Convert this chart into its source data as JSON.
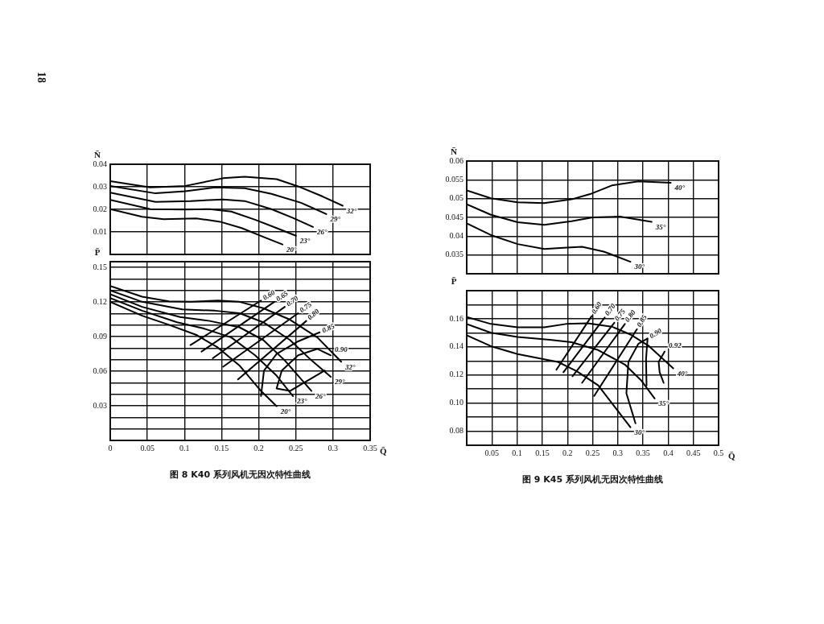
{
  "chart_data": [
    {
      "type": "line",
      "ylabel": "N̄",
      "xlim": [
        0,
        0.35
      ],
      "xticks": [
        0.05,
        0.1,
        0.15,
        0.2,
        0.25,
        0.3
      ],
      "ylim": [
        0,
        0.04
      ],
      "yticks": [
        0.01,
        0.02,
        0.03,
        0.04
      ],
      "grid": true,
      "tick_labels": "y",
      "marker": "none",
      "annotations": [
        "18"
      ],
      "series": [
        {
          "name": "32°",
          "color": "#000000",
          "x": [
            0,
            0.054,
            0.101,
            0.152,
            0.181,
            0.224,
            0.253,
            0.286,
            0.313
          ],
          "values": [
            0.0325,
            0.0297,
            0.0304,
            0.0338,
            0.0345,
            0.0334,
            0.0302,
            0.0257,
            0.0216
          ]
        },
        {
          "name": "29°",
          "color": "#000000",
          "x": [
            0,
            0.061,
            0.101,
            0.141,
            0.181,
            0.217,
            0.257,
            0.291
          ],
          "values": [
            0.0304,
            0.0271,
            0.028,
            0.0297,
            0.0294,
            0.0269,
            0.0229,
            0.0179
          ]
        },
        {
          "name": "26°",
          "color": "#000000",
          "x": [
            0,
            0.061,
            0.108,
            0.152,
            0.181,
            0.217,
            0.246,
            0.273
          ],
          "values": [
            0.0274,
            0.0233,
            0.0237,
            0.0244,
            0.0237,
            0.0201,
            0.0162,
            0.0122
          ]
        },
        {
          "name": "23°",
          "color": "#000000",
          "x": [
            0,
            0.054,
            0.101,
            0.134,
            0.163,
            0.195,
            0.224,
            0.25
          ],
          "values": [
            0.0242,
            0.0201,
            0.0199,
            0.0201,
            0.019,
            0.0154,
            0.0117,
            0.0083
          ]
        },
        {
          "name": "20°",
          "color": "#000000",
          "x": [
            0,
            0.043,
            0.072,
            0.116,
            0.148,
            0.177,
            0.206,
            0.232
          ],
          "values": [
            0.0201,
            0.0167,
            0.0156,
            0.016,
            0.0145,
            0.0117,
            0.0078,
            0.0044
          ]
        }
      ]
    },
    {
      "type": "line",
      "title": "图 8 K40 系列风机无因次特性曲线",
      "xlabel": "Q̄",
      "ylabel": "P̄",
      "xlim": [
        0,
        0.35
      ],
      "xticks": [
        0,
        0.05,
        0.1,
        0.15,
        0.2,
        0.25,
        0.3,
        0.35
      ],
      "ylim": [
        0,
        0.155
      ],
      "yticks": [
        {
          "value": 0.01,
          "label": null
        },
        {
          "value": 0.02,
          "label": null
        },
        0.03,
        {
          "value": 0.04,
          "label": null
        },
        {
          "value": 0.05,
          "label": null
        },
        0.06,
        {
          "value": 0.07,
          "label": null
        },
        {
          "value": 0.08,
          "label": null
        },
        0.09,
        {
          "value": 0.1,
          "label": null
        },
        {
          "value": 0.11,
          "label": null
        },
        0.12,
        {
          "value": 0.13,
          "label": null
        },
        {
          "value": 0.14,
          "label": null
        },
        0.15
      ],
      "grid": true,
      "marker": "none",
      "series": [
        {
          "name": "32°",
          "color": "#000000",
          "x": [
            0,
            0.043,
            0.079,
            0.108,
            0.145,
            0.174,
            0.206,
            0.242,
            0.279,
            0.311
          ],
          "values": [
            0.1339,
            0.1246,
            0.1206,
            0.1202,
            0.1213,
            0.1202,
            0.1147,
            0.1047,
            0.0893,
            0.0683
          ]
        },
        {
          "name": "29°",
          "color": "#000000",
          "x": [
            0,
            0.043,
            0.097,
            0.141,
            0.174,
            0.206,
            0.242,
            0.271,
            0.297
          ],
          "values": [
            0.1301,
            0.1202,
            0.1136,
            0.1125,
            0.1103,
            0.1025,
            0.0871,
            0.0694,
            0.0551
          ]
        },
        {
          "name": "26°",
          "color": "#000000",
          "x": [
            0,
            0.043,
            0.094,
            0.134,
            0.174,
            0.206,
            0.235,
            0.271
          ],
          "values": [
            0.1268,
            0.1158,
            0.107,
            0.1036,
            0.0981,
            0.0871,
            0.0694,
            0.0429
          ]
        },
        {
          "name": "23°",
          "color": "#000000",
          "x": [
            0,
            0.043,
            0.09,
            0.126,
            0.163,
            0.195,
            0.224,
            0.246
          ],
          "values": [
            0.1235,
            0.1125,
            0.1025,
            0.097,
            0.0893,
            0.0738,
            0.0562,
            0.0385
          ]
        },
        {
          "name": "20°",
          "color": "#000000",
          "x": [
            0,
            0.043,
            0.079,
            0.116,
            0.145,
            0.174,
            0.203,
            0.224
          ],
          "values": [
            0.1202,
            0.1081,
            0.1003,
            0.0915,
            0.0805,
            0.065,
            0.0429,
            0.0297
          ]
        },
        {
          "name": "0.60",
          "color": "#000000",
          "x": [
            0.108,
            0.203
          ],
          "values": [
            0.0827,
            0.1213
          ]
        },
        {
          "name": "0.65",
          "color": "#000000",
          "x": [
            0.123,
            0.221
          ],
          "values": [
            0.0771,
            0.1202
          ]
        },
        {
          "name": "0.70",
          "color": "#000000",
          "x": [
            0.138,
            0.235
          ],
          "values": [
            0.0712,
            0.1158
          ]
        },
        {
          "name": "0.75",
          "color": "#000000",
          "x": [
            0.152,
            0.253
          ],
          "values": [
            0.0639,
            0.1103
          ]
        },
        {
          "name": "0.80",
          "color": "#000000",
          "x": [
            0.172,
            0.264
          ],
          "values": [
            0.0529,
            0.1036
          ]
        },
        {
          "name": "0.85",
          "color": "#000000",
          "x": [
            0.203,
            0.207,
            0.224,
            0.253,
            0.282
          ],
          "values": [
            0.0385,
            0.0605,
            0.0749,
            0.0859,
            0.0937
          ]
        },
        {
          "name": "0.90",
          "color": "#000000",
          "x": [
            0.297,
            0.279,
            0.253,
            0.231,
            0.224,
            0.242,
            0.289
          ],
          "values": [
            0.0738,
            0.0794,
            0.0738,
            0.0606,
            0.0451,
            0.0429,
            0.0606
          ]
        }
      ]
    },
    {
      "type": "line",
      "ylabel": "N̄",
      "xlim": [
        0,
        0.5
      ],
      "xticks": [
        0.05,
        0.1,
        0.15,
        0.2,
        0.25,
        0.3,
        0.35,
        0.4,
        0.45
      ],
      "ylim": [
        0.03,
        0.06
      ],
      "yticks": [
        0.035,
        0.04,
        0.045,
        0.05,
        0.055,
        0.06
      ],
      "grid": true,
      "tick_labels": "y",
      "marker": "none",
      "series": [
        {
          "name": "40°",
          "color": "#000000",
          "x": [
            0,
            0.048,
            0.101,
            0.154,
            0.208,
            0.245,
            0.288,
            0.341,
            0.405
          ],
          "values": [
            0.0522,
            0.0501,
            0.049,
            0.0488,
            0.0498,
            0.0512,
            0.0535,
            0.0546,
            0.0542
          ]
        },
        {
          "name": "35°",
          "color": "#000000",
          "x": [
            0,
            0.048,
            0.101,
            0.154,
            0.208,
            0.25,
            0.304,
            0.367
          ],
          "values": [
            0.0485,
            0.0457,
            0.0437,
            0.043,
            0.044,
            0.045,
            0.0452,
            0.0438
          ]
        },
        {
          "name": "30°",
          "color": "#000000",
          "x": [
            0,
            0.048,
            0.101,
            0.154,
            0.192,
            0.229,
            0.272,
            0.325
          ],
          "values": [
            0.0434,
            0.0403,
            0.0379,
            0.0366,
            0.0369,
            0.0372,
            0.0359,
            0.0332
          ]
        }
      ]
    },
    {
      "type": "line",
      "title": "图 9 K45 系列风机无因次特性曲线",
      "xlabel": "Q̄",
      "ylabel": "P̄",
      "xlim": [
        0,
        0.5
      ],
      "xticks": [
        0.05,
        0.1,
        0.15,
        0.2,
        0.25,
        0.3,
        0.35,
        0.4,
        0.45,
        0.5
      ],
      "ylim": [
        0.07,
        0.18
      ],
      "yticks": [
        0.08,
        {
          "value": 0.09,
          "label": null
        },
        {
          "value": 0.1,
          "label": "0.10"
        },
        {
          "value": 0.11,
          "label": null
        },
        0.12,
        {
          "value": 0.13,
          "label": null
        },
        0.14,
        {
          "value": 0.15,
          "label": null
        },
        0.16,
        {
          "value": 0.17,
          "label": null
        }
      ],
      "grid": true,
      "marker": "none",
      "series": [
        {
          "name": "40°",
          "color": "#000000",
          "x": [
            0,
            0.048,
            0.101,
            0.154,
            0.197,
            0.24,
            0.288,
            0.325,
            0.362,
            0.41
          ],
          "values": [
            0.1613,
            0.1563,
            0.1539,
            0.1539,
            0.1563,
            0.1568,
            0.1544,
            0.1488,
            0.1405,
            0.1247
          ]
        },
        {
          "name": "35°",
          "color": "#000000",
          "x": [
            0,
            0.048,
            0.101,
            0.165,
            0.208,
            0.261,
            0.314,
            0.346,
            0.373
          ],
          "values": [
            0.1563,
            0.1501,
            0.147,
            0.1451,
            0.1433,
            0.1377,
            0.1274,
            0.1163,
            0.1033
          ]
        },
        {
          "name": "30°",
          "color": "#000000",
          "x": [
            0,
            0.048,
            0.101,
            0.154,
            0.181,
            0.218,
            0.261,
            0.293,
            0.325
          ],
          "values": [
            0.1483,
            0.1405,
            0.1349,
            0.1312,
            0.1293,
            0.1228,
            0.1126,
            0.0977,
            0.0828
          ]
        },
        {
          "name": "0.60",
          "color": "#000000",
          "x": [
            0.178,
            0.248
          ],
          "values": [
            0.1237,
            0.1619
          ]
        },
        {
          "name": "0.70",
          "color": "#000000",
          "x": [
            0.192,
            0.274
          ],
          "values": [
            0.1219,
            0.1609
          ]
        },
        {
          "name": "0.75",
          "color": "#000000",
          "x": [
            0.21,
            0.293
          ],
          "values": [
            0.1191,
            0.1572
          ]
        },
        {
          "name": "0.80",
          "color": "#000000",
          "x": [
            0.229,
            0.314
          ],
          "values": [
            0.1144,
            0.1563
          ]
        },
        {
          "name": "0.85",
          "color": "#000000",
          "x": [
            0.253,
            0.338
          ],
          "values": [
            0.1051,
            0.1526
          ]
        },
        {
          "name": "0.90",
          "color": "#000000",
          "x": [
            0.335,
            0.317,
            0.321,
            0.341,
            0.359,
            0.356,
            0.357
          ],
          "values": [
            0.0856,
            0.107,
            0.1293,
            0.1423,
            0.146,
            0.1312,
            0.1126
          ]
        },
        {
          "name": "0.92",
          "color": "#000000",
          "x": [
            0.393,
            0.381,
            0.383,
            0.391
          ],
          "values": [
            0.1367,
            0.1293,
            0.1219,
            0.1144
          ]
        }
      ]
    }
  ]
}
